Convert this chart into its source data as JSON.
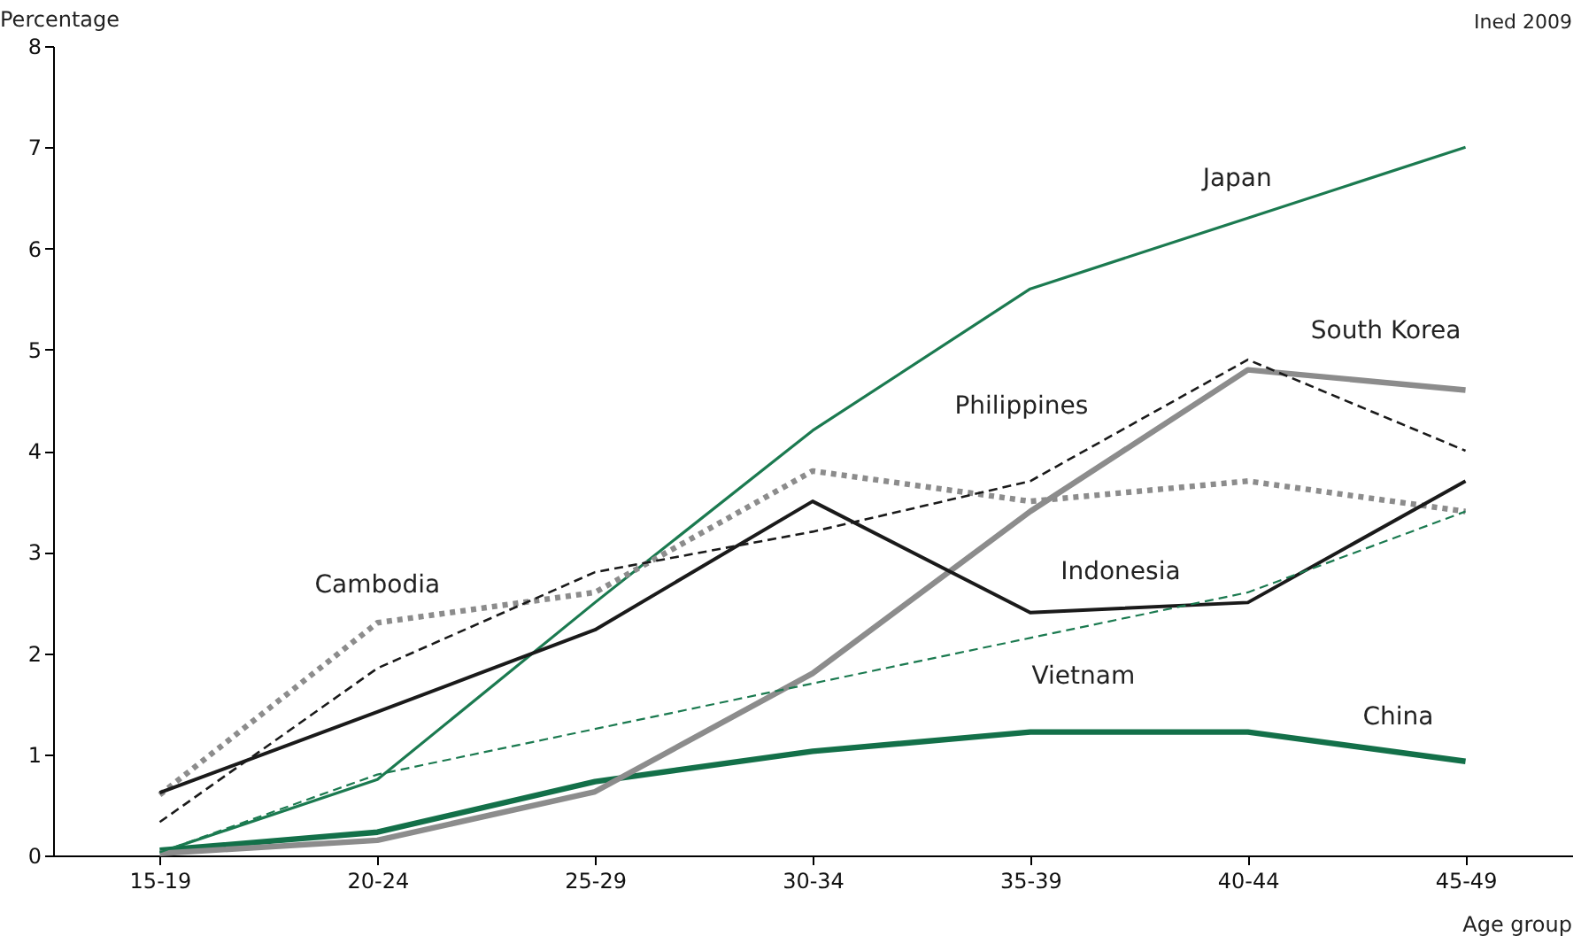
{
  "chart_data": {
    "type": "line",
    "xlabel": "Age group",
    "ylabel": "Percentage",
    "annotations": [
      "Ined 2009"
    ],
    "categories": [
      "15-19",
      "20-24",
      "25-29",
      "30-34",
      "35-39",
      "40-44",
      "45-49"
    ],
    "series": [
      {
        "name": "Japan",
        "color": "#1b7a50",
        "line_style": "solid",
        "values": [
          0.03,
          0.75,
          2.5,
          4.2,
          5.6,
          6.3,
          7.0
        ]
      },
      {
        "name": "China",
        "color": "#137049",
        "line_style": "solid",
        "values": [
          0.05,
          0.23,
          0.73,
          1.03,
          1.22,
          1.22,
          0.93
        ]
      },
      {
        "name": "South Korea",
        "color": "#8c8c8c",
        "line_style": "solid",
        "values": [
          0.02,
          0.15,
          0.63,
          1.8,
          3.4,
          4.8,
          4.6
        ]
      },
      {
        "name": "Cambodia",
        "color": "#8c8c8c",
        "line_style": "dotted",
        "values": [
          0.6,
          2.3,
          2.6,
          3.8,
          3.5,
          3.7,
          3.4
        ]
      },
      {
        "name": "Philippines",
        "color": "#1a1a1a",
        "line_style": "dashed",
        "values": [
          0.33,
          1.85,
          2.8,
          3.2,
          3.7,
          4.9,
          4.0
        ]
      },
      {
        "name": "Indonesia",
        "color": "#1a1a1a",
        "line_style": "solid",
        "values": [
          0.62,
          1.42,
          2.23,
          3.5,
          2.4,
          2.5,
          3.7
        ]
      },
      {
        "name": "Vietnam",
        "color": "#1b7a50",
        "line_style": "dashed",
        "values": [
          0.03,
          0.8,
          1.25,
          1.7,
          2.15,
          2.6,
          3.4
        ]
      }
    ],
    "ylim": [
      0,
      8
    ],
    "yticks": [
      0,
      1,
      2,
      3,
      4,
      5,
      6,
      7,
      8
    ],
    "grid": false
  }
}
